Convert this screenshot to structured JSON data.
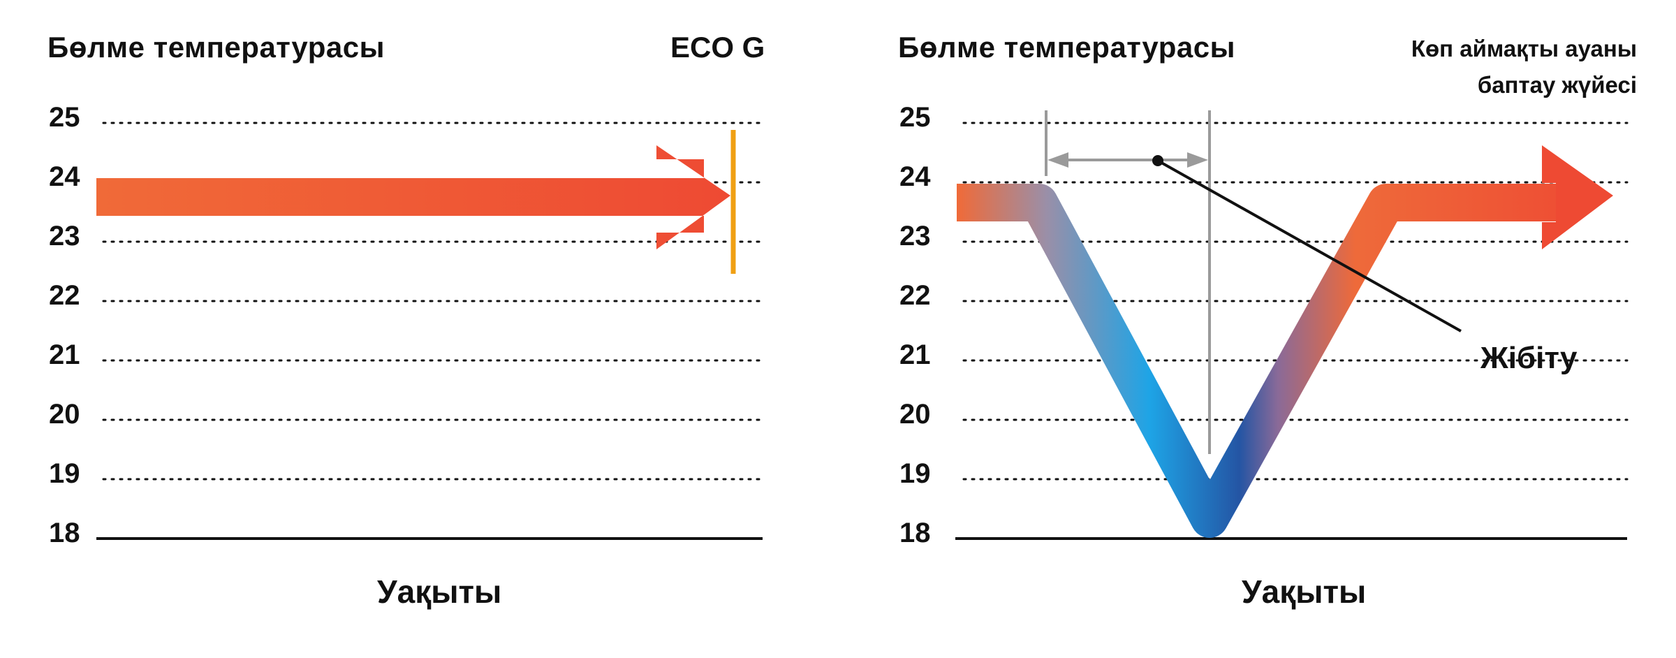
{
  "colors": {
    "warm": "#ee4a33",
    "warm_light": "#f06a38",
    "cool": "#1ea4e6",
    "cool_dark": "#2455a4",
    "marker": "#f0a014",
    "grey": "#9a9a9a",
    "grid": "#111111"
  },
  "chart_data": [
    {
      "type": "line",
      "title": "Бөлме температурасы",
      "label": "ECO G",
      "xlabel": "Уақыты",
      "ylabel": "Бөлме температурасы",
      "ylim": [
        18,
        25
      ],
      "yticks": [
        "25",
        "24",
        "23",
        "22",
        "21",
        "20",
        "19",
        "18"
      ],
      "grid": true,
      "series": [
        {
          "values": [
            23.7,
            23.7
          ]
        }
      ]
    },
    {
      "type": "line",
      "title": "Бөлме температурасы",
      "label_lines": [
        "Көп аймақты ауаны",
        "баптау жүйесі"
      ],
      "xlabel": "Уақыты",
      "ylabel": "Бөлме температурасы",
      "ylim": [
        18,
        25
      ],
      "yticks": [
        "25",
        "24",
        "23",
        "22",
        "21",
        "20",
        "19",
        "18"
      ],
      "grid": true,
      "annotation": "Жібіту",
      "series": [
        {
          "values": [
            23.7,
            23.7,
            18.3,
            23.7,
            23.7
          ]
        }
      ]
    }
  ]
}
